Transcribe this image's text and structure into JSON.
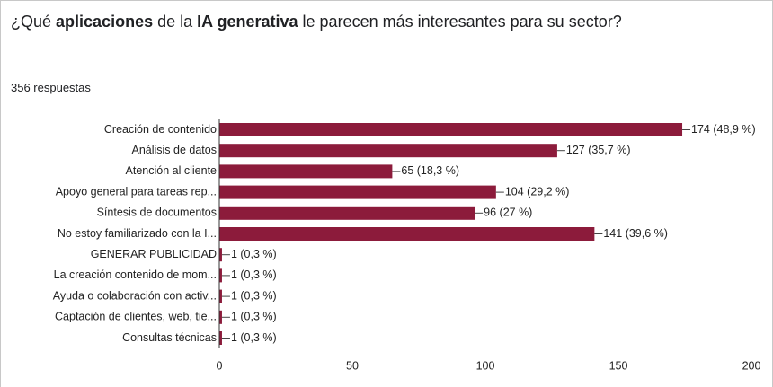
{
  "chart_data": {
    "type": "bar",
    "orientation": "horizontal",
    "title": [
      {
        "text": "¿Qué ",
        "bold": false
      },
      {
        "text": "aplicaciones",
        "bold": true
      },
      {
        "text": " de la ",
        "bold": false
      },
      {
        "text": "IA generativa",
        "bold": true
      },
      {
        "text": " le parecen más interesantes para su sector?",
        "bold": false
      }
    ],
    "subtitle": "356 respuestas",
    "categories": [
      "Creación de contenido",
      "Análisis de datos",
      "Atención al cliente",
      "Apoyo general para tareas rep...",
      "Síntesis de documentos",
      "No estoy familiarizado con la I...",
      "GENERAR PUBLICIDAD",
      "La creación contenido de mom...",
      "Ayuda o colaboración con activ...",
      "Captación de clientes, web, tie...",
      "Consultas técnicas"
    ],
    "values": [
      174,
      127,
      65,
      104,
      96,
      141,
      1,
      1,
      1,
      1,
      1
    ],
    "value_labels": [
      "174 (48,9 %)",
      "127 (35,7 %)",
      "65 (18,3 %)",
      "104 (29,2 %)",
      "96 (27 %)",
      "141 (39,6 %)",
      "1 (0,3 %)",
      "1 (0,3 %)",
      "1 (0,3 %)",
      "1 (0,3 %)",
      "1 (0,3 %)"
    ],
    "color": "#8c1b3b",
    "xlim": [
      0,
      200
    ],
    "xticks": [
      0,
      50,
      100,
      150,
      200
    ]
  }
}
